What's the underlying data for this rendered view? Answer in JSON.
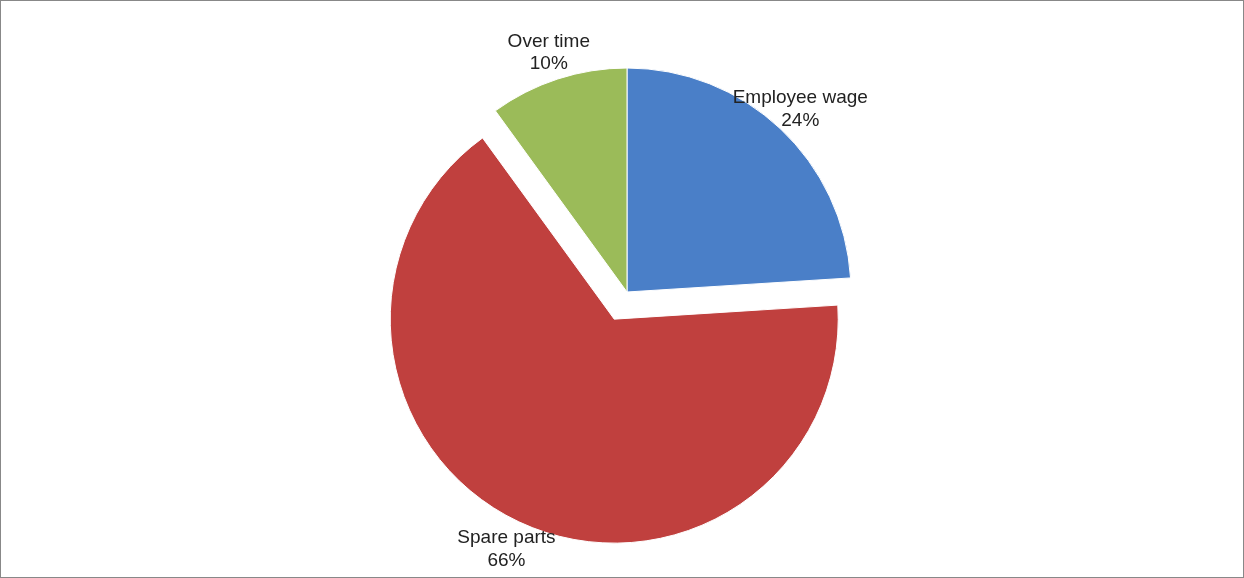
{
  "chart_data": {
    "type": "pie",
    "categories": [
      "Employee wage",
      "Spare parts",
      "Over time"
    ],
    "values": [
      24,
      66,
      10
    ],
    "value_labels": [
      "24%",
      "66%",
      "10%"
    ],
    "colors": [
      "#4a7fc8",
      "#c0403e",
      "#9bbb59"
    ]
  }
}
